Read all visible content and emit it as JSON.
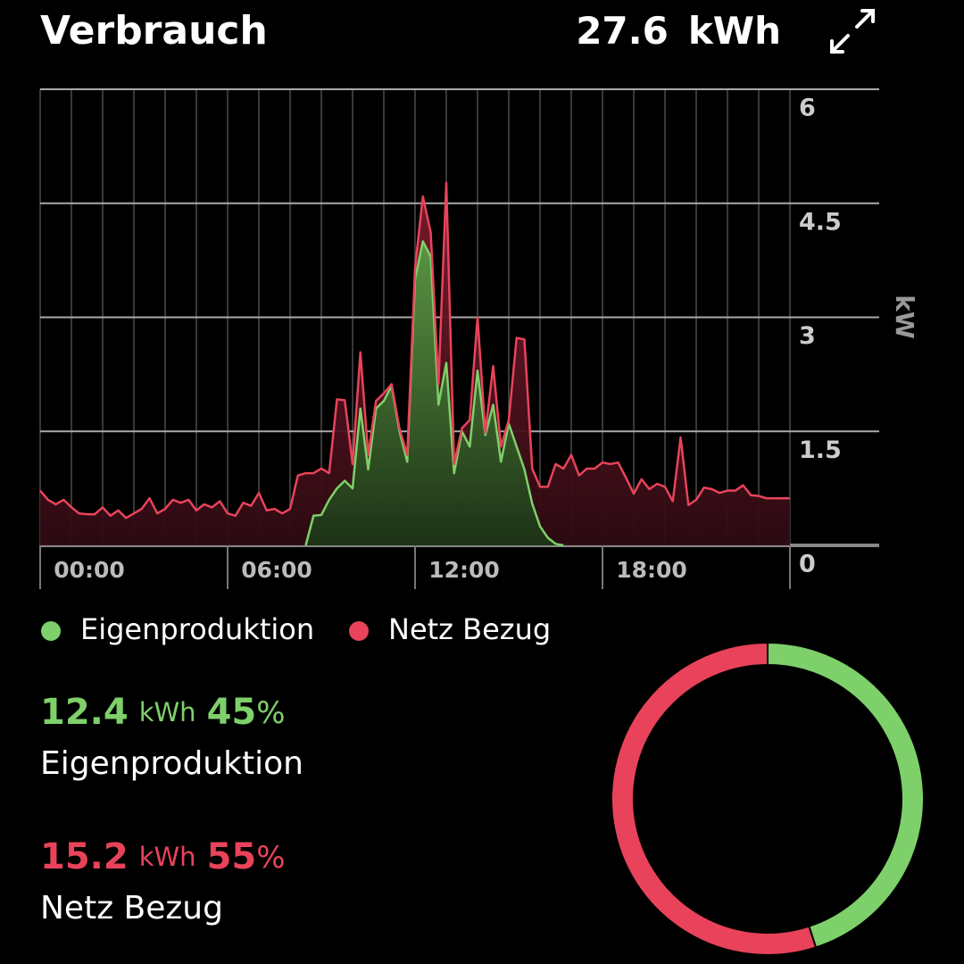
{
  "header": {
    "title": "Verbrauch",
    "total": 27.6,
    "unit": "kWh"
  },
  "chart_data": [
    {
      "type": "area",
      "stacked": true,
      "y_label": "kW",
      "xlim": [
        0,
        24
      ],
      "xticks": [
        {
          "value": 0,
          "label": "00:00"
        },
        {
          "value": 6,
          "label": "06:00"
        },
        {
          "value": 12,
          "label": "12:00"
        },
        {
          "value": 18,
          "label": "18:00"
        }
      ],
      "ylim": [
        0,
        6
      ],
      "yticks": [
        0,
        1.5,
        3,
        4.5,
        6
      ],
      "grid": true,
      "x": [
        0,
        0.25,
        0.5,
        0.75,
        1,
        1.25,
        1.5,
        1.75,
        2,
        2.25,
        2.5,
        2.75,
        3,
        3.25,
        3.5,
        3.75,
        4,
        4.25,
        4.5,
        4.75,
        5,
        5.25,
        5.5,
        5.75,
        6,
        6.25,
        6.5,
        6.75,
        7,
        7.25,
        7.5,
        7.75,
        8,
        8.25,
        8.5,
        8.75,
        9,
        9.25,
        9.5,
        9.75,
        10,
        10.25,
        10.5,
        10.75,
        11,
        11.25,
        11.5,
        11.75,
        12,
        12.25,
        12.5,
        12.75,
        13,
        13.25,
        13.5,
        13.75,
        14,
        14.25,
        14.5,
        14.75,
        15,
        15.25,
        15.5,
        15.75,
        16,
        16.25,
        16.5,
        16.75,
        17,
        17.25,
        17.5,
        17.75,
        18,
        18.25,
        18.5,
        18.75,
        19,
        19.25,
        19.5,
        19.75,
        20,
        20.25,
        20.5,
        20.75,
        21,
        21.25,
        21.5,
        21.75,
        22,
        22.25,
        22.5,
        22.75,
        23,
        23.25,
        23.5,
        23.75,
        24
      ],
      "series": [
        {
          "name": "Eigenproduktion",
          "color": "#7ed06a",
          "values": [
            null,
            null,
            null,
            null,
            null,
            null,
            null,
            null,
            null,
            null,
            null,
            null,
            null,
            null,
            null,
            null,
            null,
            null,
            null,
            null,
            null,
            null,
            null,
            null,
            null,
            null,
            null,
            null,
            null,
            null,
            null,
            null,
            null,
            null,
            0,
            0.39,
            0.4,
            0.6,
            0.75,
            0.85,
            0.75,
            1.8,
            1.0,
            1.8,
            1.9,
            2.1,
            1.5,
            1.1,
            3.5,
            4.0,
            3.8,
            1.85,
            2.4,
            0.95,
            1.5,
            1.3,
            2.3,
            1.45,
            1.85,
            1.1,
            1.6,
            1.3,
            1.0,
            0.55,
            0.25,
            0.1,
            0.02,
            0,
            null,
            null,
            null,
            null,
            null,
            null,
            null,
            null,
            null,
            null,
            null,
            null,
            null,
            null,
            null,
            null,
            null,
            null,
            null,
            null,
            null,
            null,
            null,
            null,
            null,
            null,
            null,
            null,
            null
          ]
        },
        {
          "name": "Netz Bezug",
          "color": "#e8435a",
          "values": [
            0.72,
            0.6,
            0.54,
            0.6,
            0.5,
            0.42,
            0.41,
            0.41,
            0.5,
            0.39,
            0.46,
            0.36,
            0.42,
            0.48,
            0.62,
            0.42,
            0.48,
            0.6,
            0.56,
            0.6,
            0.46,
            0.54,
            0.5,
            0.58,
            0.42,
            0.39,
            0.56,
            0.52,
            0.69,
            0.46,
            0.48,
            0.42,
            0.48,
            0.92,
            0.95,
            0.56,
            0.61,
            0.35,
            1.17,
            1.06,
            0.32,
            0.74,
            0.19,
            0.1,
            0.1,
            0.02,
            0.04,
            0.09,
            0.15,
            0.59,
            0.32,
            0.27,
            2.37,
            0.12,
            0.04,
            0.35,
            0.7,
            0.03,
            0.51,
            0.2,
            0.05,
            1.43,
            1.71,
            0.46,
            0.52,
            0.67,
            1.05,
            1.01,
            1.19,
            0.92,
            1.01,
            1.01,
            1.09,
            1.07,
            1.09,
            0.89,
            0.68,
            0.87,
            0.74,
            0.81,
            0.77,
            0.58,
            1.42,
            0.53,
            0.6,
            0.76,
            0.74,
            0.69,
            0.72,
            0.72,
            0.79,
            0.66,
            0.65,
            0.62,
            0.62,
            0.62,
            0.62
          ]
        }
      ]
    },
    {
      "type": "pie",
      "donut": true,
      "categories": [
        "Eigenproduktion",
        "Netz Bezug"
      ],
      "values": [
        45,
        55
      ],
      "value_unit": "%",
      "colors": [
        "#7ed06a",
        "#e8435a"
      ],
      "energy": [
        12.4,
        15.2
      ],
      "energy_unit": "kWh"
    }
  ]
}
